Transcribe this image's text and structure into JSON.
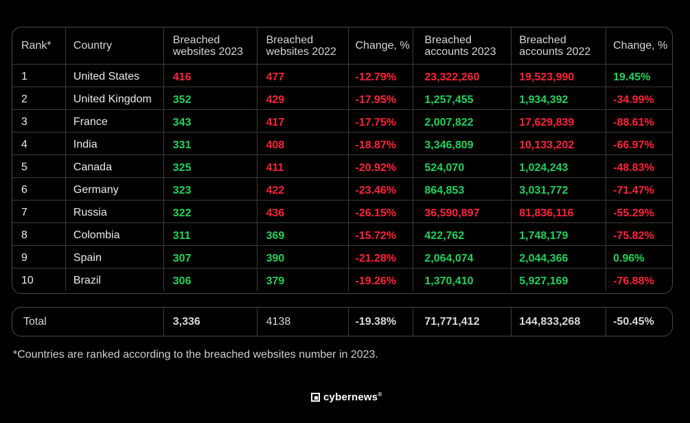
{
  "table": {
    "headers": [
      [
        "Rank*"
      ],
      [
        "Country"
      ],
      [
        "Breached",
        "websites 2023"
      ],
      [
        "Breached",
        "websites 2022"
      ],
      [
        "Change, %"
      ],
      [
        "Breached",
        "accounts 2023"
      ],
      [
        "Breached",
        "accounts 2022"
      ],
      [
        "Change, %"
      ]
    ],
    "rows": [
      {
        "rank": "1",
        "country": "United States",
        "w23": "416",
        "w22": "477",
        "wchg": "-12.79%",
        "a23": "23,322,260",
        "a22": "19,523,990",
        "achg": "19.45%",
        "colors": {
          "w23": "red",
          "w22": "red",
          "wchg": "red",
          "a23": "red",
          "a22": "red",
          "achg": "green"
        }
      },
      {
        "rank": "2",
        "country": "United Kingdom",
        "w23": "352",
        "w22": "429",
        "wchg": "-17.95%",
        "a23": "1,257,455",
        "a22": "1,934,392",
        "achg": "-34.99%",
        "colors": {
          "w23": "green",
          "w22": "red",
          "wchg": "red",
          "a23": "green",
          "a22": "green",
          "achg": "red"
        }
      },
      {
        "rank": "3",
        "country": "France",
        "w23": "343",
        "w22": "417",
        "wchg": "-17.75%",
        "a23": "2,007,822",
        "a22": "17,629,839",
        "achg": "-88.61%",
        "colors": {
          "w23": "green",
          "w22": "red",
          "wchg": "red",
          "a23": "green",
          "a22": "red",
          "achg": "red"
        }
      },
      {
        "rank": "4",
        "country": "India",
        "w23": "331",
        "w22": "408",
        "wchg": "-18.87%",
        "a23": "3,346,809",
        "a22": "10,133,202",
        "achg": "-66.97%",
        "colors": {
          "w23": "green",
          "w22": "red",
          "wchg": "red",
          "a23": "green",
          "a22": "red",
          "achg": "red"
        }
      },
      {
        "rank": "5",
        "country": "Canada",
        "w23": "325",
        "w22": "411",
        "wchg": "-20.92%",
        "a23": "524,070",
        "a22": "1,024,243",
        "achg": "-48.83%",
        "colors": {
          "w23": "green",
          "w22": "red",
          "wchg": "red",
          "a23": "green",
          "a22": "green",
          "achg": "red"
        }
      },
      {
        "rank": "6",
        "country": "Germany",
        "w23": "323",
        "w22": "422",
        "wchg": "-23.46%",
        "a23": "864,853",
        "a22": "3,031,772",
        "achg": "-71.47%",
        "colors": {
          "w23": "green",
          "w22": "red",
          "wchg": "red",
          "a23": "green",
          "a22": "green",
          "achg": "red"
        }
      },
      {
        "rank": "7",
        "country": "Russia",
        "w23": "322",
        "w22": "436",
        "wchg": "-26.15%",
        "a23": "36,590,897",
        "a22": "81,836,116",
        "achg": "-55.29%",
        "colors": {
          "w23": "green",
          "w22": "red",
          "wchg": "red",
          "a23": "red",
          "a22": "red",
          "achg": "red"
        }
      },
      {
        "rank": "8",
        "country": "Colombia",
        "w23": "311",
        "w22": "369",
        "wchg": "-15.72%",
        "a23": "422,762",
        "a22": "1,748,179",
        "achg": "-75.82%",
        "colors": {
          "w23": "green",
          "w22": "green",
          "wchg": "red",
          "a23": "green",
          "a22": "green",
          "achg": "red"
        }
      },
      {
        "rank": "9",
        "country": "Spain",
        "w23": "307",
        "w22": "390",
        "wchg": "-21.28%",
        "a23": "2,064,074",
        "a22": "2,044,366",
        "achg": "0.96%",
        "colors": {
          "w23": "green",
          "w22": "green",
          "wchg": "red",
          "a23": "green",
          "a22": "green",
          "achg": "green"
        }
      },
      {
        "rank": "10",
        "country": "Brazil",
        "w23": "306",
        "w22": "379",
        "wchg": "-19.26%",
        "a23": "1,370,410",
        "a22": "5,927,169",
        "achg": "-76.88%",
        "colors": {
          "w23": "green",
          "w22": "green",
          "wchg": "red",
          "a23": "green",
          "a22": "green",
          "achg": "red"
        }
      }
    ]
  },
  "total": {
    "label": "Total",
    "w23": "3,336",
    "w22": "4138",
    "wchg": "-19.38%",
    "a23": "71,771,412",
    "a22": "144,833,268",
    "achg": "-50.45%"
  },
  "footnote": "*Countries are ranked according to the breached websites number in 2023.",
  "brand": {
    "name": "cybernews",
    "mark": "®",
    "icon": "cybernews-logo-icon"
  },
  "colors": {
    "red": "#ff2238",
    "green": "#21d35a",
    "background": "#000000"
  }
}
